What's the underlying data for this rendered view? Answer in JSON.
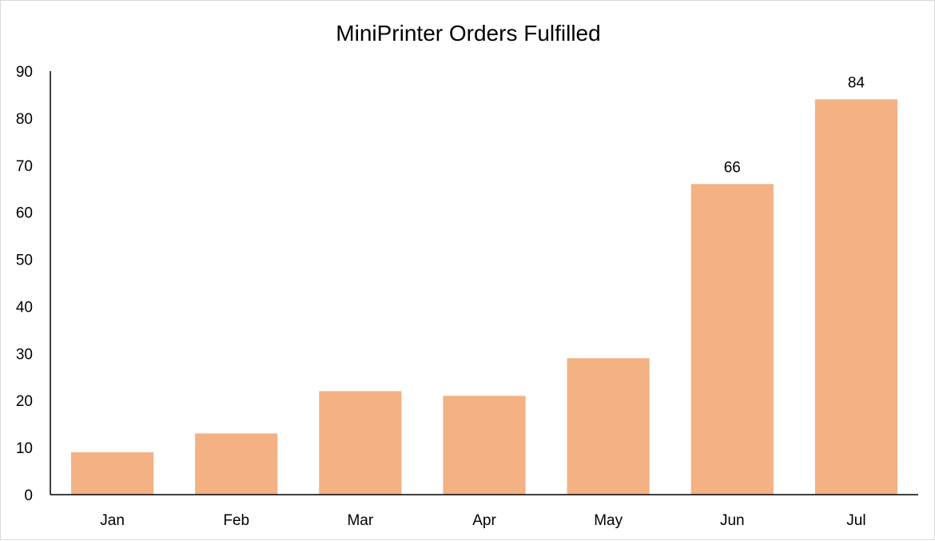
{
  "chart_data": {
    "type": "bar",
    "title": "MiniPrinter Orders Fulfilled",
    "categories": [
      "Jan",
      "Feb",
      "Mar",
      "Apr",
      "May",
      "Jun",
      "Jul"
    ],
    "values": [
      9,
      13,
      22,
      21,
      29,
      66,
      84
    ],
    "data_labels": [
      {
        "category": "Jun",
        "text": "66"
      },
      {
        "category": "Jul",
        "text": "84"
      }
    ],
    "ylim": [
      0,
      90
    ],
    "yticks": [
      0,
      10,
      20,
      30,
      40,
      50,
      60,
      70,
      80,
      90
    ],
    "ytick_labels": [
      "0",
      "10",
      "20",
      "30",
      "40",
      "50",
      "60",
      "70",
      "80",
      "90"
    ],
    "grid": false,
    "legend": "none",
    "bar_color": "#f4b183",
    "axis_color": "#000000"
  }
}
